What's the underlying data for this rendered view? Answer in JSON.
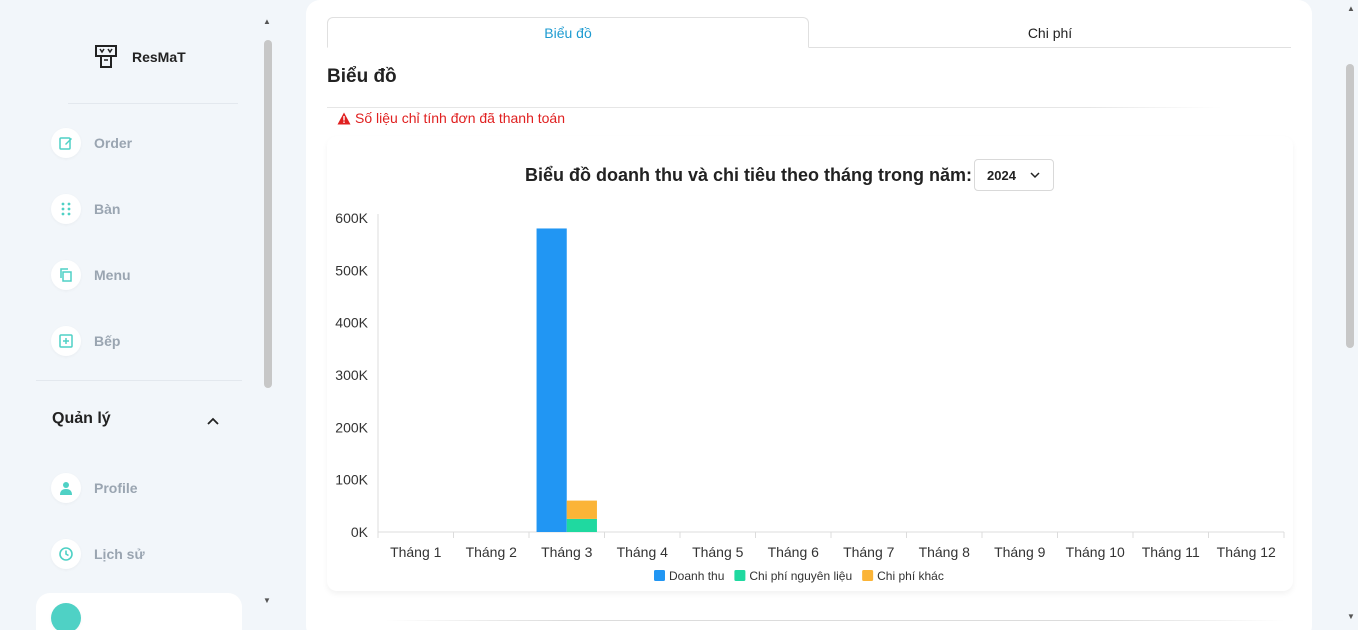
{
  "app": {
    "name": "ResMaT"
  },
  "sidebar": {
    "items": [
      {
        "label": "Order",
        "icon": "edit-icon"
      },
      {
        "label": "Bàn",
        "icon": "grid-dots-icon"
      },
      {
        "label": "Menu",
        "icon": "copy-icon"
      },
      {
        "label": "Bếp",
        "icon": "plus-square-icon"
      }
    ],
    "section": {
      "title": "Quản lý",
      "icon": "chevron-up-icon"
    },
    "section_items": [
      {
        "label": "Profile",
        "icon": "user-icon"
      },
      {
        "label": "Lịch sử",
        "icon": "clock-icon"
      }
    ]
  },
  "tabs": [
    {
      "label": "Biểu đồ",
      "active": true
    },
    {
      "label": "Chi phí",
      "active": false
    }
  ],
  "page": {
    "title": "Biểu đồ",
    "warning": "Số liệu chỉ tính đơn đã thanh toán",
    "chart_heading": "Biểu đồ doanh thu và chi tiêu theo tháng trong năm:",
    "year": "2024"
  },
  "colors": {
    "accent": "#1d9bd1",
    "revenue": "#2196f3",
    "ingredient_cost": "#1fd9a0",
    "other_cost": "#fbb437",
    "warning": "#e02020",
    "active_nav": "#4fd1c5"
  },
  "chart_data": {
    "type": "bar",
    "categories": [
      "Tháng 1",
      "Tháng 2",
      "Tháng 3",
      "Tháng 4",
      "Tháng 5",
      "Tháng 6",
      "Tháng 7",
      "Tháng 8",
      "Tháng 9",
      "Tháng 10",
      "Tháng 11",
      "Tháng 12"
    ],
    "series": [
      {
        "name": "Doanh thu",
        "stack": "a",
        "color": "#2196f3",
        "values": [
          0,
          0,
          580000,
          0,
          0,
          0,
          0,
          0,
          0,
          0,
          0,
          0
        ]
      },
      {
        "name": "Chi phí nguyên liệu",
        "stack": "b",
        "color": "#1fd9a0",
        "values": [
          0,
          0,
          25000,
          0,
          0,
          0,
          0,
          0,
          0,
          0,
          0,
          0
        ]
      },
      {
        "name": "Chi phí khác",
        "stack": "b",
        "color": "#fbb437",
        "values": [
          0,
          0,
          35000,
          0,
          0,
          0,
          0,
          0,
          0,
          0,
          0,
          0
        ]
      }
    ],
    "yticks": [
      "0K",
      "100K",
      "200K",
      "300K",
      "400K",
      "500K",
      "600K"
    ],
    "ylim": [
      0,
      600000
    ],
    "legend": "bottom",
    "grid": false
  }
}
